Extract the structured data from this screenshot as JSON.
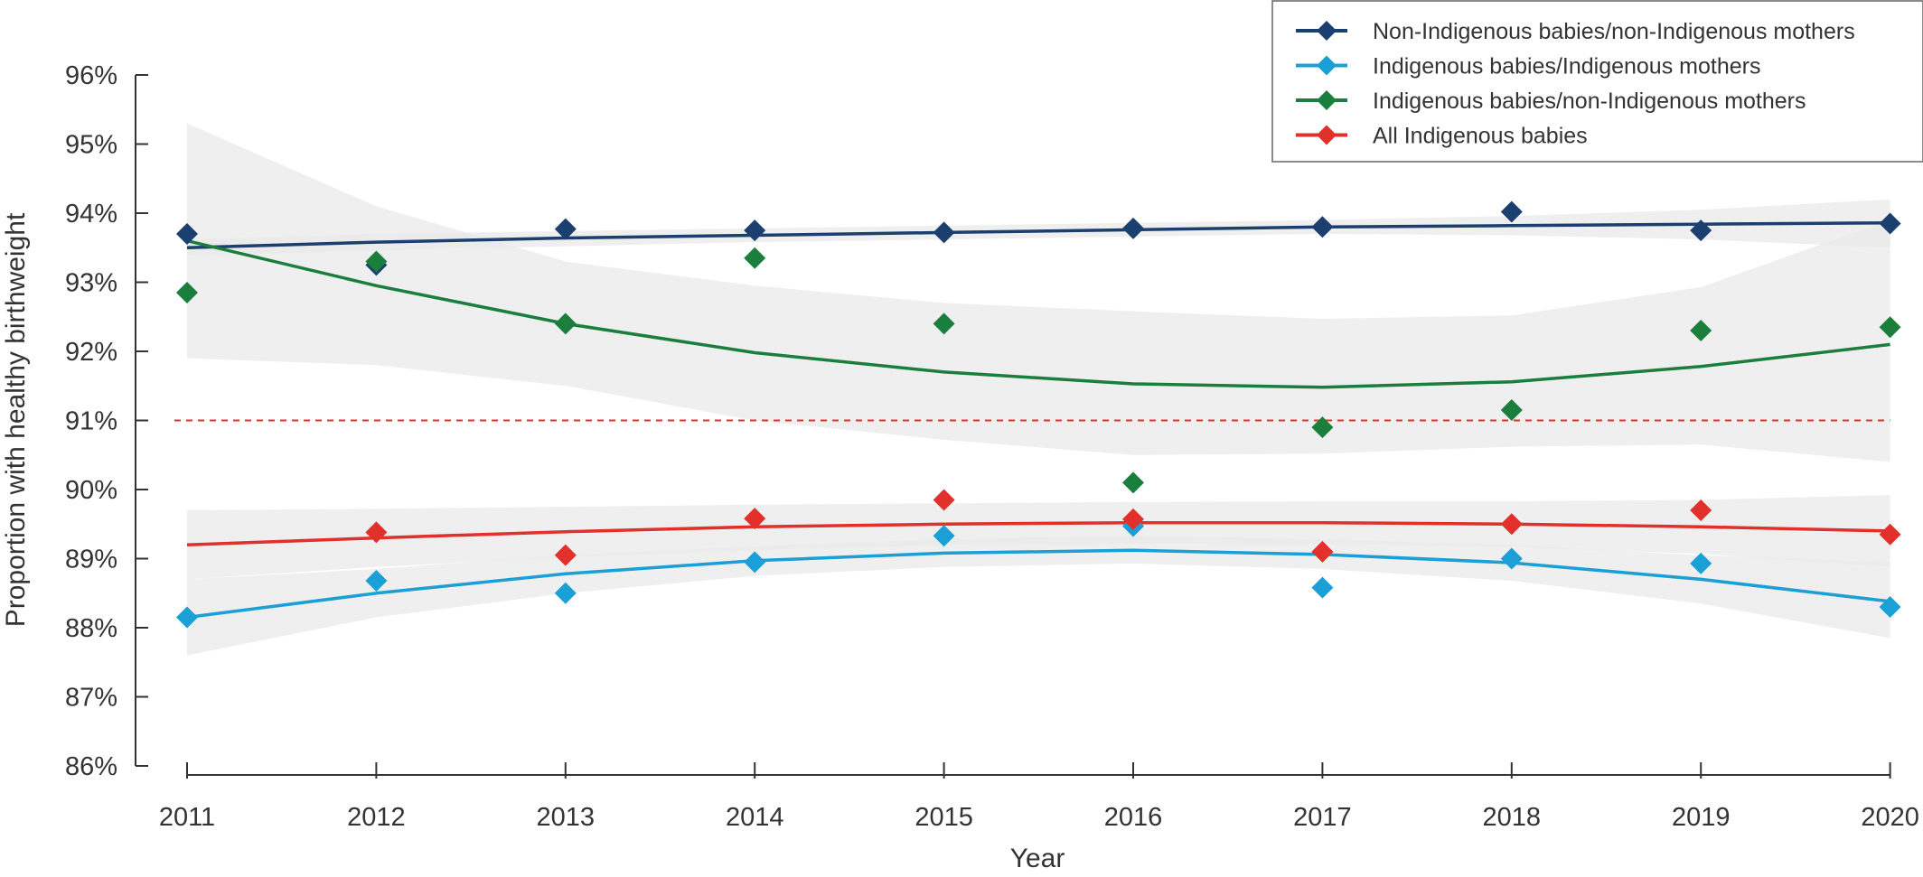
{
  "chart_data": {
    "type": "line",
    "xlabel": "Year",
    "ylabel": "Proportion with healthy birthweight",
    "x": [
      "2011",
      "2012",
      "2013",
      "2014",
      "2015",
      "2016",
      "2017",
      "2018",
      "2019",
      "2020"
    ],
    "y_ticks": [
      "86%",
      "87%",
      "88%",
      "89%",
      "90%",
      "91%",
      "92%",
      "93%",
      "94%",
      "95%",
      "96%"
    ],
    "ylim": [
      86,
      96
    ],
    "reference_line": 91,
    "grid": false,
    "legend_position": "top-right",
    "series": [
      {
        "name": "Non-Indigenous babies/non-Indigenous mothers",
        "color": "#1b3f6e",
        "values": [
          93.7,
          93.25,
          93.77,
          93.75,
          93.72,
          93.78,
          93.8,
          94.02,
          93.75,
          93.85
        ],
        "trend": [
          93.5,
          93.58,
          93.64,
          93.68,
          93.72,
          93.76,
          93.8,
          93.82,
          93.84,
          93.86
        ],
        "ci_upper": [
          93.62,
          93.7,
          93.74,
          93.78,
          93.82,
          93.86,
          93.9,
          93.96,
          94.05,
          94.2
        ],
        "ci_lower": [
          93.38,
          93.46,
          93.52,
          93.58,
          93.62,
          93.66,
          93.7,
          93.68,
          93.62,
          93.5
        ]
      },
      {
        "name": "Indigenous babies/Indigenous mothers",
        "color": "#1a9fd6",
        "values": [
          88.15,
          88.68,
          88.5,
          88.95,
          89.33,
          89.47,
          88.58,
          89.0,
          88.93,
          88.3
        ],
        "trend": [
          88.15,
          88.5,
          88.78,
          88.97,
          89.08,
          89.12,
          89.06,
          88.94,
          88.7,
          88.38
        ],
        "ci_upper": [
          88.7,
          88.85,
          89.05,
          89.18,
          89.28,
          89.33,
          89.28,
          89.2,
          89.05,
          88.95
        ],
        "ci_lower": [
          87.6,
          88.15,
          88.5,
          88.75,
          88.88,
          88.93,
          88.85,
          88.68,
          88.35,
          87.85
        ]
      },
      {
        "name": "Indigenous babies/non-Indigenous mothers",
        "color": "#1a7f3c",
        "values": [
          92.85,
          93.3,
          92.4,
          93.35,
          92.4,
          90.1,
          90.9,
          91.15,
          92.3,
          92.35
        ],
        "trend": [
          93.6,
          92.95,
          92.4,
          91.98,
          91.7,
          91.53,
          91.48,
          91.56,
          91.78,
          92.1
        ],
        "ci_upper": [
          95.3,
          94.1,
          93.3,
          92.95,
          92.7,
          92.58,
          92.47,
          92.52,
          92.93,
          93.9
        ],
        "ci_lower": [
          91.9,
          91.8,
          91.5,
          91.0,
          90.72,
          90.5,
          90.52,
          90.62,
          90.65,
          90.4
        ]
      },
      {
        "name": "All Indigenous babies",
        "color": "#e2302b",
        "values": [
          null,
          89.38,
          89.05,
          89.58,
          89.85,
          89.57,
          89.1,
          89.5,
          89.7,
          89.35
        ],
        "trend": [
          89.2,
          89.3,
          89.39,
          89.46,
          89.5,
          89.52,
          89.52,
          89.5,
          89.46,
          89.4
        ],
        "ci_upper": [
          89.7,
          89.72,
          89.75,
          89.78,
          89.8,
          89.82,
          89.83,
          89.83,
          89.85,
          89.92
        ],
        "ci_lower": [
          88.7,
          88.88,
          89.02,
          89.12,
          89.2,
          89.22,
          89.21,
          89.17,
          89.07,
          88.88
        ]
      }
    ]
  }
}
